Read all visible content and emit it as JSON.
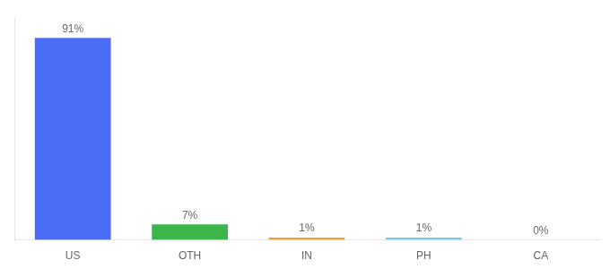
{
  "chart_data": {
    "type": "bar",
    "categories": [
      "US",
      "OTH",
      "IN",
      "PH",
      "CA"
    ],
    "values": [
      91,
      7,
      1,
      1,
      0
    ],
    "value_labels": [
      "91%",
      "7%",
      "1%",
      "1%",
      "0%"
    ],
    "colors": [
      "#4a6cf7",
      "#3cb54a",
      "#f0a030",
      "#7bc8f0",
      "#7bc8f0"
    ],
    "ylim": [
      0,
      100
    ],
    "grid": false,
    "data_labels": true,
    "tick_labels": "x"
  }
}
